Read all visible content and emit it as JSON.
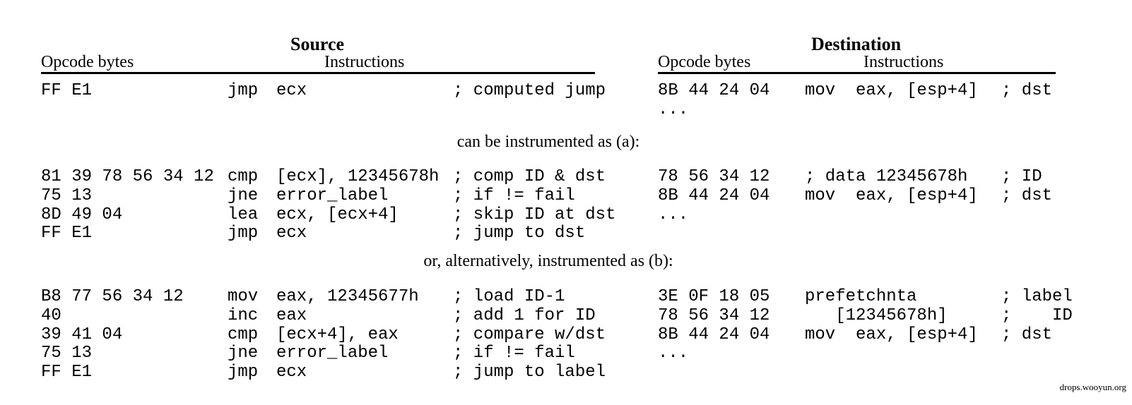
{
  "headers": {
    "source": {
      "title": "Source",
      "opcode_label": "Opcode bytes",
      "instructions_label": "Instructions"
    },
    "destination": {
      "title": "Destination",
      "opcode_label": "Opcode bytes",
      "instructions_label": "Instructions"
    }
  },
  "sections": {
    "original": {
      "source": [
        {
          "bytes": "FF E1",
          "op": "jmp",
          "args": "ecx",
          "comment": "; computed jump"
        }
      ],
      "destination": [
        {
          "bytes": "8B 44 24 04",
          "instr": "mov  eax, [esp+4]",
          "comment": "; dst"
        },
        {
          "bytes": "...",
          "instr": "",
          "comment": ""
        }
      ]
    },
    "caption_a": "can be instrumented as (a):",
    "a": {
      "source": [
        {
          "bytes": "81 39 78 56 34 12",
          "op": "cmp",
          "args": "[ecx], 12345678h",
          "comment": "; comp ID & dst"
        },
        {
          "bytes": "75 13",
          "op": "jne",
          "args": "error_label",
          "comment": "; if != fail"
        },
        {
          "bytes": "8D 49 04",
          "op": "lea",
          "args": "ecx, [ecx+4]",
          "comment": "; skip ID at dst"
        },
        {
          "bytes": "FF E1",
          "op": "jmp",
          "args": "ecx",
          "comment": "; jump to dst"
        }
      ],
      "destination": [
        {
          "bytes": "78 56 34 12",
          "instr": "; data 12345678h",
          "comment": "; ID"
        },
        {
          "bytes": "8B 44 24 04",
          "instr": "mov  eax, [esp+4]",
          "comment": "; dst"
        },
        {
          "bytes": "...",
          "instr": "",
          "comment": ""
        }
      ]
    },
    "caption_b": "or, alternatively, instrumented as (b):",
    "b": {
      "source": [
        {
          "bytes": "B8 77 56 34 12",
          "op": "mov",
          "args": "eax, 12345677h",
          "comment": "; load ID-1"
        },
        {
          "bytes": "40",
          "op": "inc",
          "args": "eax",
          "comment": "; add 1 for ID"
        },
        {
          "bytes": "39 41 04",
          "op": "cmp",
          "args": "[ecx+4], eax",
          "comment": "; compare w/dst"
        },
        {
          "bytes": "75 13",
          "op": "jne",
          "args": "error_label",
          "comment": "; if != fail"
        },
        {
          "bytes": "FF E1",
          "op": "jmp",
          "args": "ecx",
          "comment": "; jump to label"
        }
      ],
      "destination": [
        {
          "bytes": "3E 0F 18 05",
          "instr": "prefetchnta",
          "comment": "; label"
        },
        {
          "bytes": "78 56 34 12",
          "instr": "   [12345678h]",
          "comment": ";    ID"
        },
        {
          "bytes": "8B 44 24 04",
          "instr": "mov  eax, [esp+4]",
          "comment": "; dst"
        },
        {
          "bytes": "...",
          "instr": "",
          "comment": ""
        }
      ]
    }
  },
  "watermark": "drops.wooyun.org"
}
